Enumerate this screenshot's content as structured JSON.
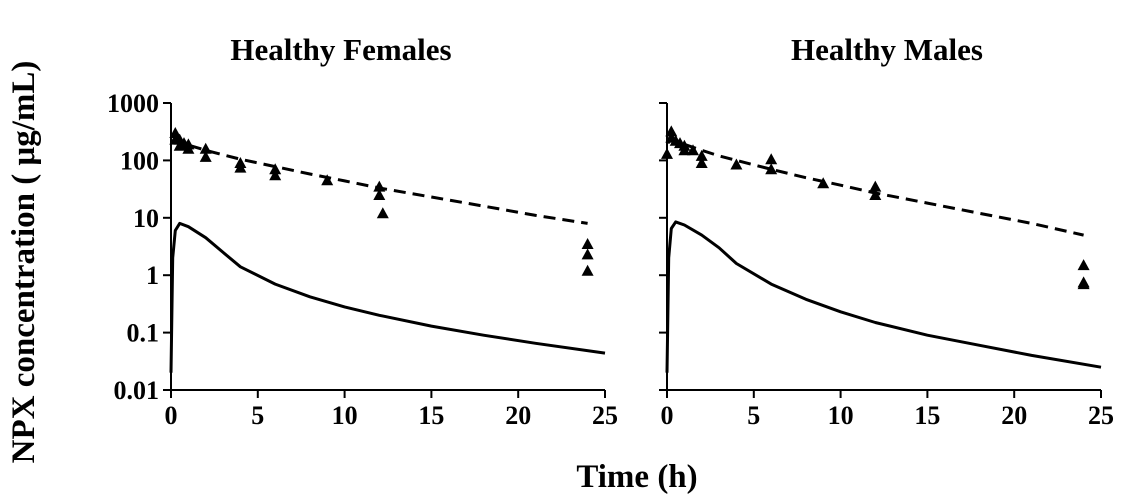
{
  "figure": {
    "ylabel": "NPX concentration ( μg/mL)",
    "xlabel": "Time (h)"
  },
  "chart_data": [
    {
      "type": "line",
      "title": "Healthy Females",
      "xlim": [
        0,
        25
      ],
      "ylim": [
        0.01,
        1000
      ],
      "yscale": "log",
      "x_ticks": [
        "0",
        "5",
        "10",
        "15",
        "20",
        "25"
      ],
      "y_ticks": [
        "0.01",
        "0.1",
        "1",
        "10",
        "100",
        "1000"
      ],
      "grid": false,
      "series": [
        {
          "style": "dashed",
          "x": [
            0.05,
            0.25,
            0.5,
            1,
            2,
            3,
            4,
            6,
            8,
            10,
            12,
            15,
            18,
            21,
            24
          ],
          "y": [
            200,
            215,
            205,
            185,
            150,
            125,
            105,
            78,
            58,
            44,
            33,
            23,
            16,
            11,
            8
          ]
        },
        {
          "style": "solid",
          "x": [
            0,
            0.1,
            0.25,
            0.5,
            1,
            2,
            3,
            4,
            6,
            8,
            10,
            12,
            15,
            18,
            21,
            25
          ],
          "y": [
            0.02,
            2,
            6,
            8,
            7,
            4.5,
            2.5,
            1.4,
            0.7,
            0.42,
            0.28,
            0.2,
            0.13,
            0.09,
            0.065,
            0.044
          ]
        },
        {
          "style": "markers",
          "x": [
            0.25,
            0.25,
            0.5,
            0.5,
            0.75,
            1,
            1,
            2,
            2,
            4,
            4,
            6,
            6,
            9,
            12,
            12,
            12.2,
            24,
            24,
            24
          ],
          "y": [
            300,
            230,
            230,
            180,
            200,
            190,
            160,
            160,
            115,
            90,
            75,
            70,
            55,
            45,
            35,
            25,
            12,
            3.5,
            2.3,
            1.2
          ]
        }
      ]
    },
    {
      "type": "line",
      "title": "Healthy Males",
      "xlim": [
        0,
        25
      ],
      "ylim": [
        0.01,
        1000
      ],
      "yscale": "log",
      "x_ticks": [
        "0",
        "5",
        "10",
        "15",
        "20",
        "25"
      ],
      "y_ticks": [],
      "grid": false,
      "series": [
        {
          "style": "dashed",
          "x": [
            0.05,
            0.25,
            0.5,
            1,
            2,
            3,
            4,
            6,
            8,
            10,
            12,
            15,
            18,
            21,
            24
          ],
          "y": [
            200,
            230,
            215,
            190,
            150,
            120,
            100,
            70,
            50,
            37,
            27,
            18,
            12,
            8,
            5
          ]
        },
        {
          "style": "solid",
          "x": [
            0,
            0.1,
            0.25,
            0.5,
            1,
            2,
            3,
            4,
            6,
            8,
            10,
            12,
            15,
            18,
            21,
            25
          ],
          "y": [
            0.02,
            2,
            6.5,
            8.5,
            7.5,
            5,
            3,
            1.6,
            0.7,
            0.38,
            0.23,
            0.15,
            0.09,
            0.06,
            0.04,
            0.025
          ]
        },
        {
          "style": "markers",
          "x": [
            0,
            0.25,
            0.25,
            0.5,
            0.75,
            1,
            1,
            1.5,
            2,
            2,
            4,
            6,
            6,
            9,
            12,
            12,
            24,
            24,
            24
          ],
          "y": [
            130,
            320,
            250,
            220,
            200,
            180,
            150,
            150,
            120,
            90,
            85,
            105,
            70,
            40,
            35,
            25,
            1.5,
            0.75,
            0.7
          ]
        }
      ]
    }
  ]
}
